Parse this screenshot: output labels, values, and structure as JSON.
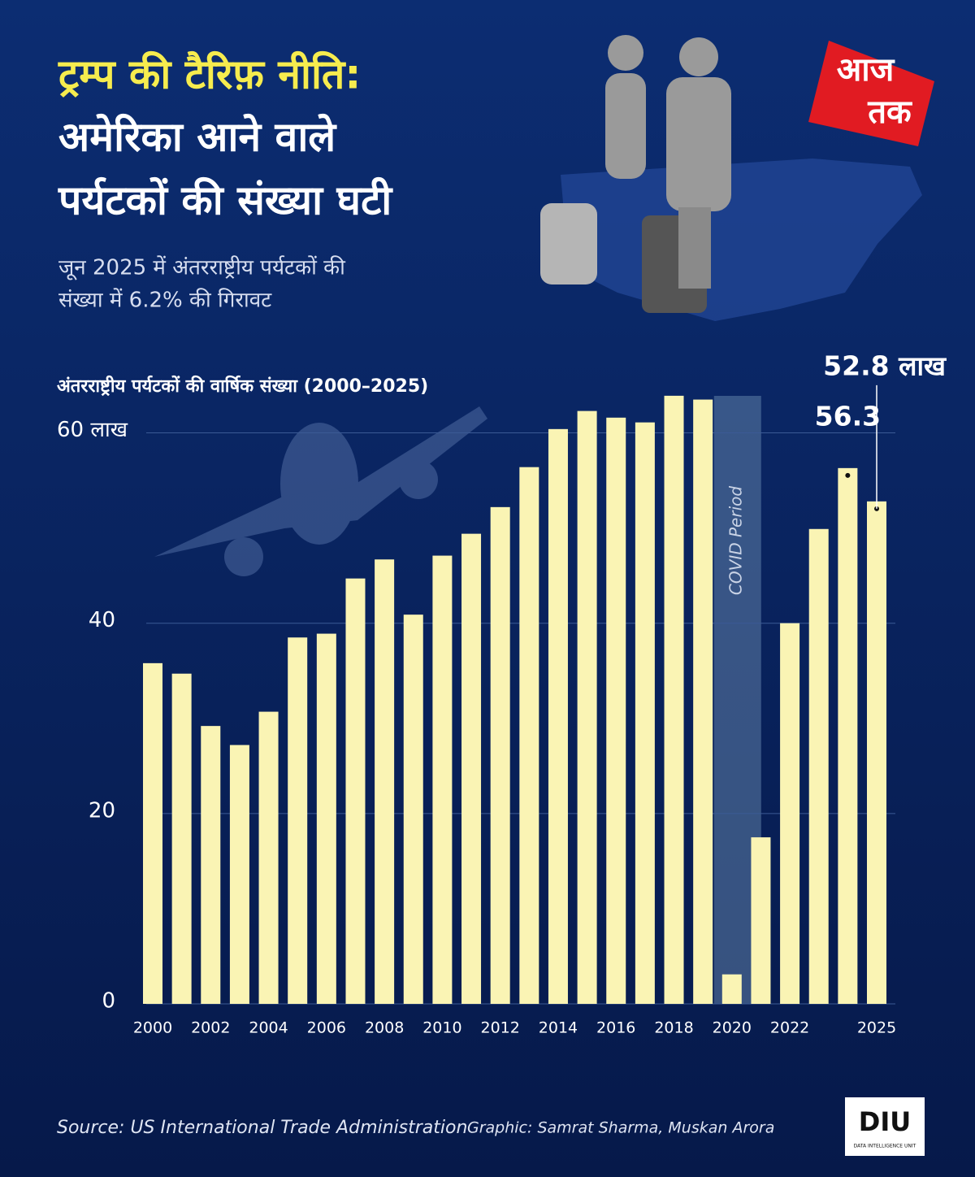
{
  "chart_data": {
    "type": "bar",
    "title": [
      "ट्रम्प की टैरिफ़ नीति:",
      "अमेरिका आने वाले",
      "पर्यटकों की संख्या घटी"
    ],
    "subtitle": [
      "जून 2025 में अंतरराष्ट्रीय पर्यटकों की",
      "संख्या में 6.2% की गिरावट"
    ],
    "y_label": "अंतरराष्ट्रीय पर्यटकों की वार्षिक संख्या (2000–2025)",
    "categories": [
      "2000",
      null,
      "2002",
      null,
      "2004",
      null,
      "2006",
      null,
      "2008",
      null,
      "2010",
      null,
      "2012",
      null,
      "2014",
      null,
      "2016",
      null,
      "2018",
      null,
      "2020",
      null,
      "2022",
      null,
      null,
      "2025"
    ],
    "values": [
      35.8,
      34.7,
      29.2,
      27.2,
      30.7,
      38.5,
      38.9,
      44.7,
      46.7,
      40.9,
      47.1,
      49.4,
      52.2,
      56.4,
      60.4,
      62.3,
      61.6,
      61.1,
      63.9,
      63.5,
      3.1,
      17.5,
      40.0,
      49.9,
      56.3,
      52.8
    ],
    "value_labels": [
      null,
      null,
      null,
      null,
      null,
      null,
      null,
      null,
      null,
      null,
      null,
      null,
      null,
      null,
      null,
      null,
      null,
      null,
      null,
      null,
      null,
      null,
      null,
      null,
      "56.3",
      "52.8 लाख"
    ],
    "color": "#faf4b4",
    "ylim": [
      0,
      65
    ],
    "yticks": [
      0,
      20,
      40,
      {
        "value": 60,
        "label": "60 लाख"
      }
    ],
    "grid": true,
    "annotation": {
      "text": "COVID Period",
      "category_index": 20
    },
    "source": "Source: US International Trade Administration",
    "credit": "Graphic: Samrat Sharma, Muskan Arora"
  },
  "branding": {
    "logo": [
      "आज",
      "तक"
    ],
    "unit": "DIU",
    "unit_full": "DATA INTELLIGENCE UNIT"
  }
}
